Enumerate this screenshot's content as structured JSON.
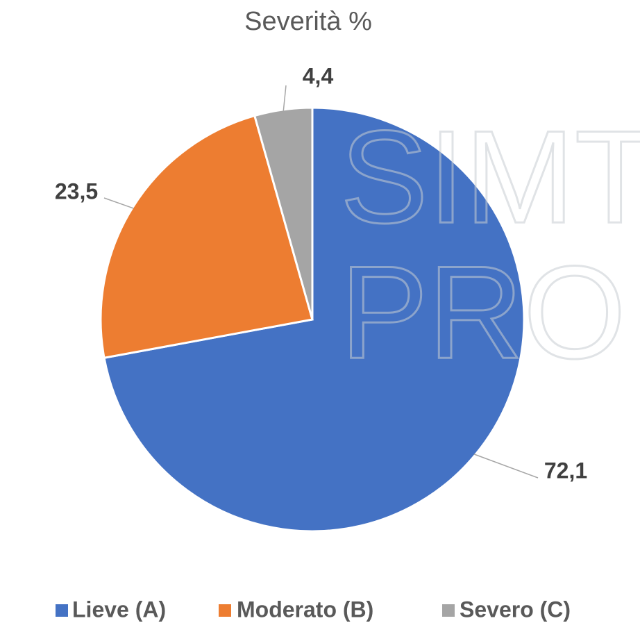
{
  "chart_data": {
    "type": "pie",
    "title": "Severità %",
    "categories": [
      "Lieve (A)",
      "Moderato (B)",
      "Severo (C)"
    ],
    "values": [
      72.1,
      23.5,
      4.4
    ],
    "value_labels": [
      "72,1",
      "23,5",
      "4,4"
    ],
    "colors": [
      "#4472c4",
      "#ed7d31",
      "#a5a5a5"
    ],
    "legend": "bottom",
    "watermark": [
      "SIMTI",
      "PRO"
    ]
  }
}
